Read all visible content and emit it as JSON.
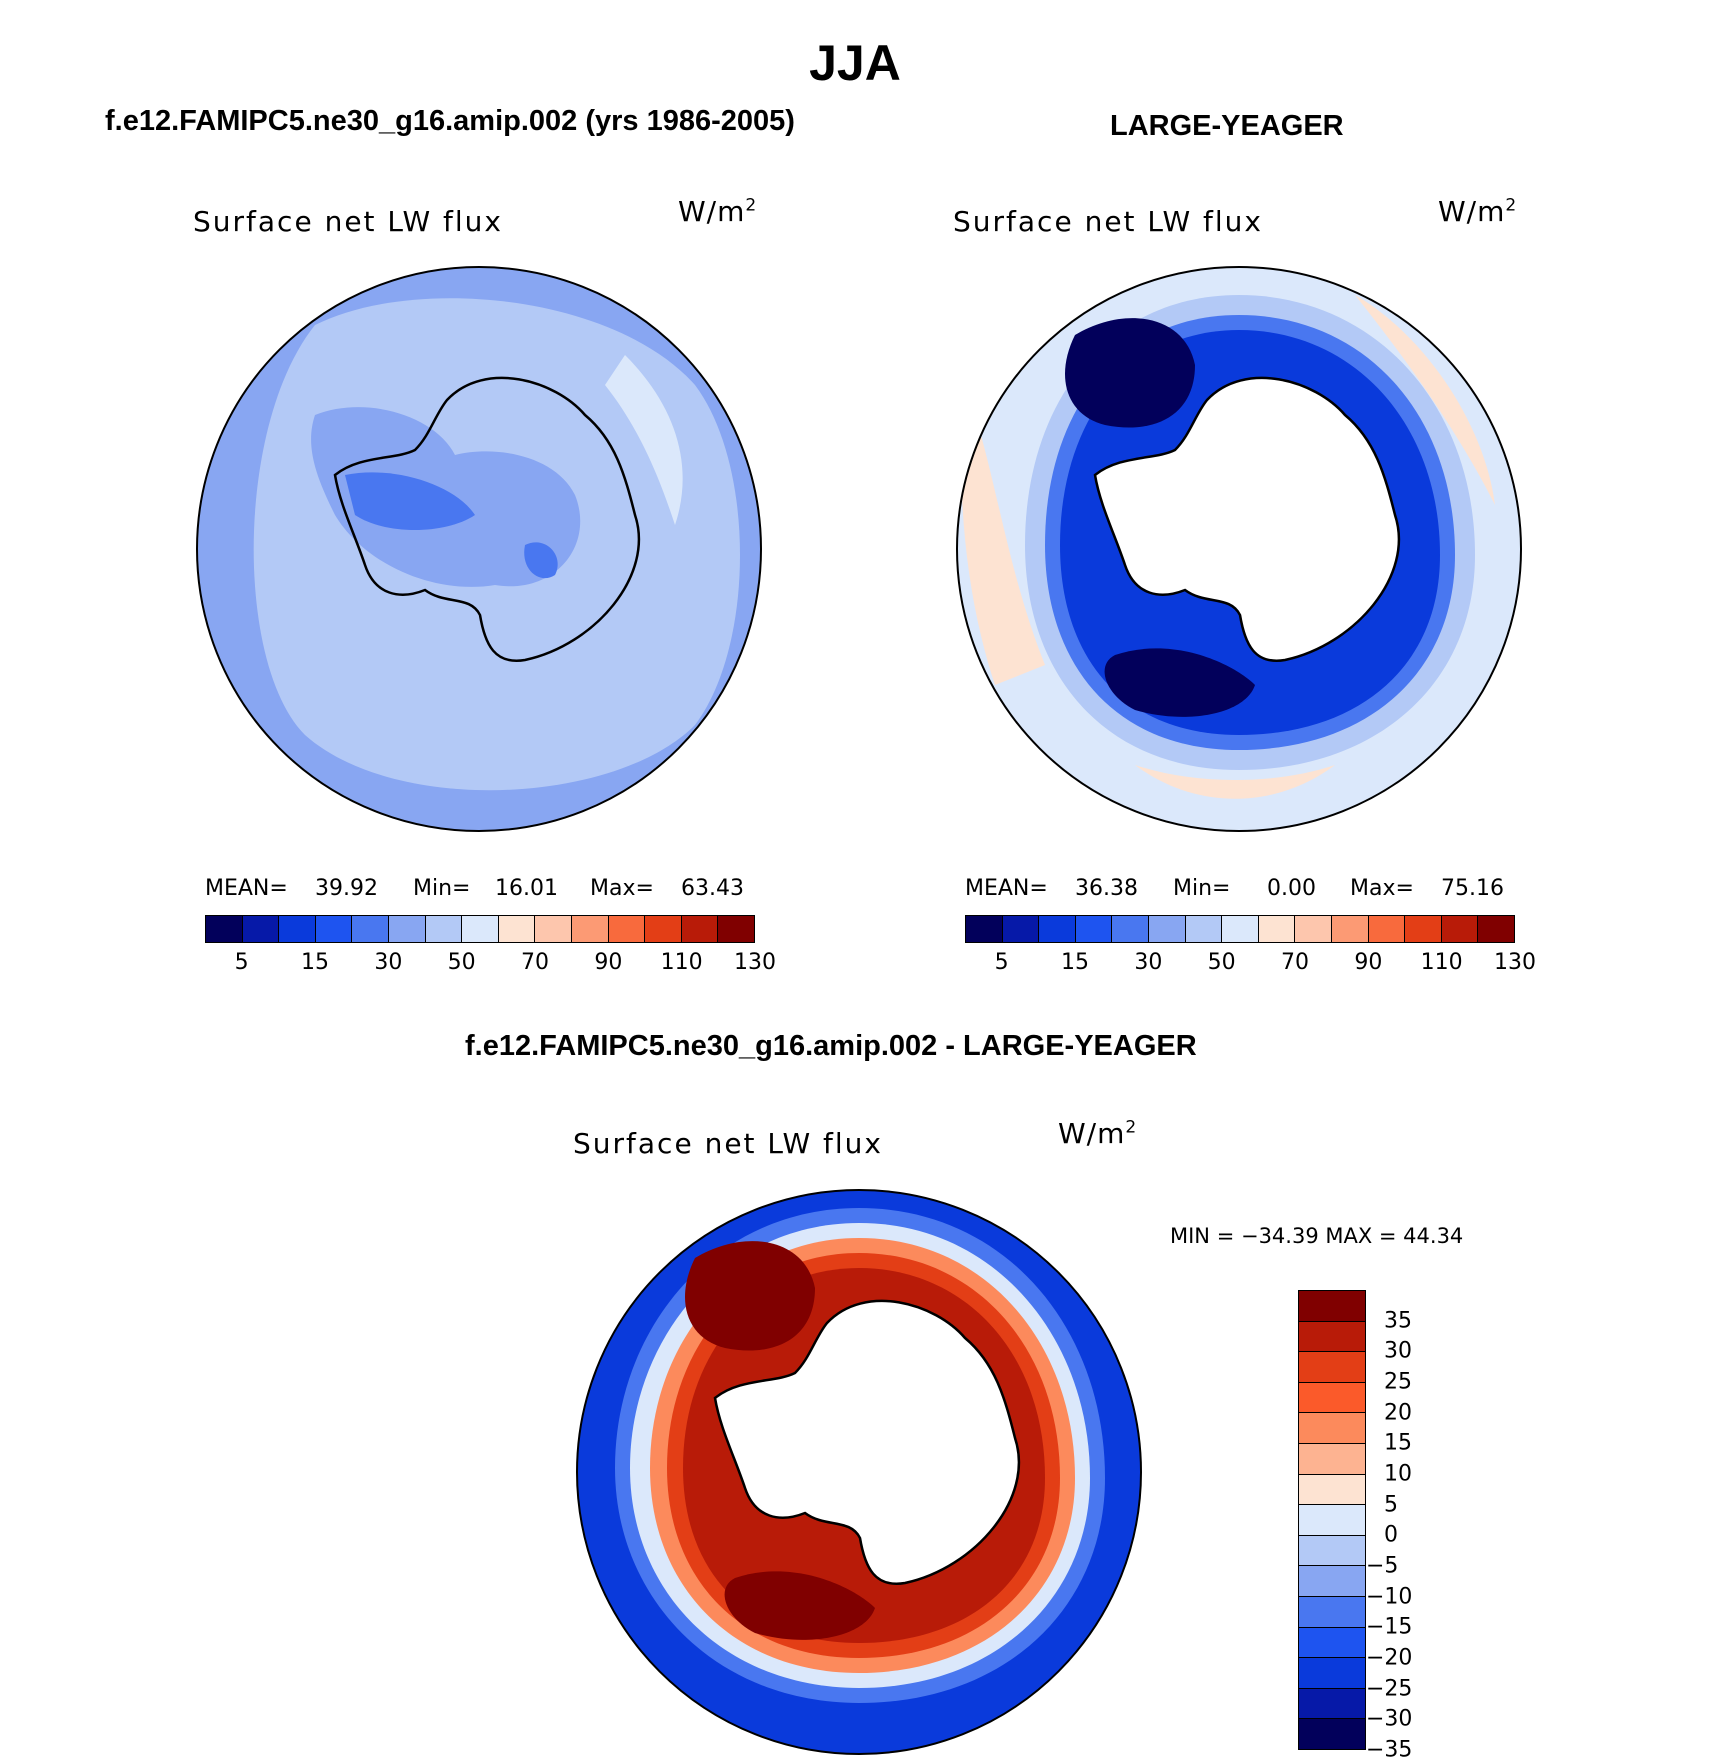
{
  "title": "JJA",
  "panels": {
    "left": {
      "title": "f.e12.FAMIPC5.ne30_g16.amip.002 (yrs 1986-2005)",
      "var_label": "Surface net LW flux",
      "units": "W/m",
      "units_exp": "2",
      "mean_label": "MEAN=",
      "mean_value": "39.92",
      "min_label": "Min=",
      "min_value": "16.01",
      "max_label": "Max=",
      "max_value": "63.43"
    },
    "right": {
      "title": "LARGE-YEAGER",
      "var_label": "Surface net LW flux",
      "units": "W/m",
      "units_exp": "2",
      "mean_label": "MEAN=",
      "mean_value": "36.38",
      "min_label": "Min=",
      "min_value": "0.00",
      "max_label": "Max=",
      "max_value": "75.16"
    },
    "diff": {
      "title": "f.e12.FAMIPC5.ne30_g16.amip.002 - LARGE-YEAGER",
      "var_label": "Surface net LW flux",
      "units": "W/m",
      "units_exp": "2",
      "minmax": "MIN = −34.39 MAX =  44.34"
    }
  },
  "chart_data": [
    {
      "type": "heatmap",
      "projection": "south-polar-stereographic",
      "title": "f.e12.FAMIPC5.ne30_g16.amip.002 (yrs 1986-2005)",
      "variable": "Surface net LW flux",
      "units": "W/m2",
      "mean": 39.92,
      "min": 16.01,
      "max": 63.43,
      "colorbar_ticks": [
        "5",
        "15",
        "30",
        "50",
        "70",
        "90",
        "110",
        "130"
      ],
      "colorbar_colors": [
        "#02005b",
        "#0619a8",
        "#0a3adb",
        "#1e54f0",
        "#4977f0",
        "#88a6f2",
        "#b3c9f6",
        "#dbe8fb",
        "#fde3d2",
        "#fdc6ad",
        "#fc9a74",
        "#f86a3d",
        "#e33e16",
        "#b81b08",
        "#800000"
      ]
    },
    {
      "type": "heatmap",
      "projection": "south-polar-stereographic",
      "title": "LARGE-YEAGER",
      "variable": "Surface net LW flux",
      "units": "W/m2",
      "mean": 36.38,
      "min": 0.0,
      "max": 75.16,
      "colorbar_ticks": [
        "5",
        "15",
        "30",
        "50",
        "70",
        "90",
        "110",
        "130"
      ],
      "colorbar_colors": [
        "#02005b",
        "#0619a8",
        "#0a3adb",
        "#1e54f0",
        "#4977f0",
        "#88a6f2",
        "#b3c9f6",
        "#dbe8fb",
        "#fde3d2",
        "#fdc6ad",
        "#fc9a74",
        "#f86a3d",
        "#e33e16",
        "#b81b08",
        "#800000"
      ]
    },
    {
      "type": "heatmap",
      "projection": "south-polar-stereographic",
      "title": "f.e12.FAMIPC5.ne30_g16.amip.002 - LARGE-YEAGER",
      "variable": "Surface net LW flux",
      "units": "W/m2",
      "min": -34.39,
      "max": 44.34,
      "colorbar_ticks": [
        "35",
        "30",
        "25",
        "20",
        "15",
        "10",
        "5",
        "0",
        "−5",
        "−10",
        "−15",
        "−20",
        "−25",
        "−30",
        "−35"
      ],
      "colorbar_colors": [
        "#800000",
        "#b81b08",
        "#e33e16",
        "#fb5a2a",
        "#fc8a5c",
        "#fdb391",
        "#fde3d2",
        "#dbe8fb",
        "#b3c9f6",
        "#88a6f2",
        "#4977f0",
        "#1e54f0",
        "#0a3adb",
        "#0619a8",
        "#02005b"
      ]
    }
  ]
}
